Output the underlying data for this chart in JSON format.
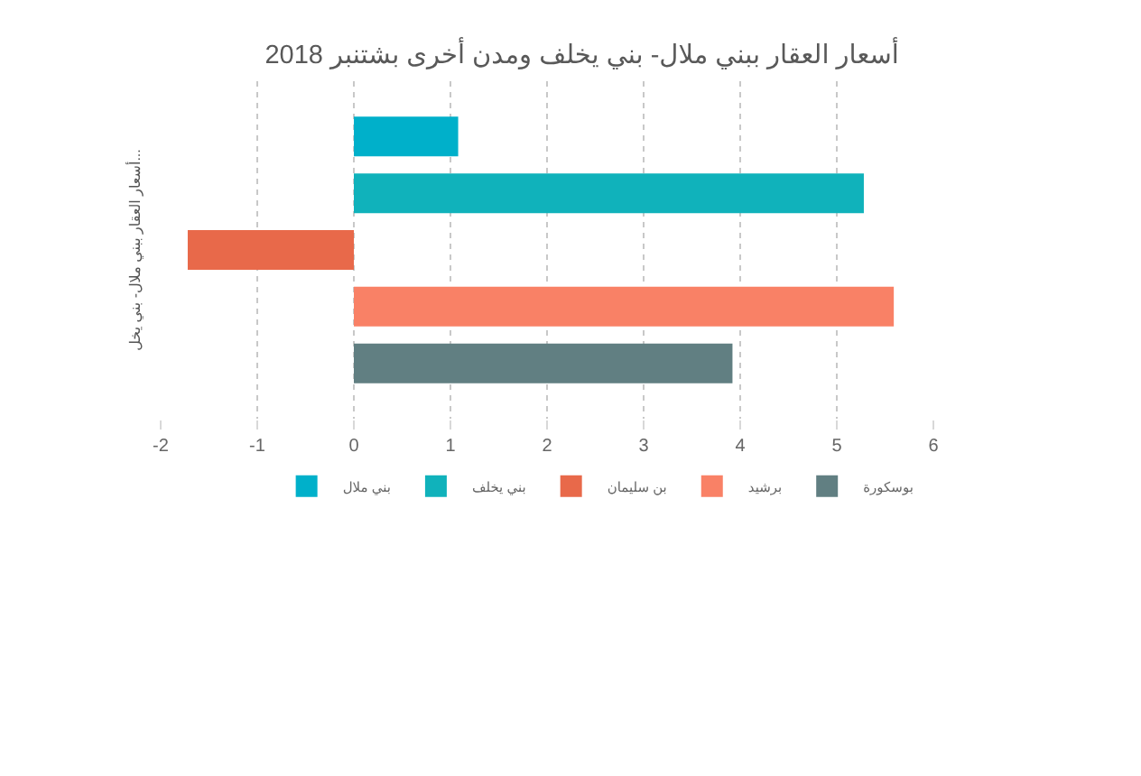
{
  "chart_data": {
    "type": "bar",
    "orientation": "horizontal",
    "title": "أسعار العقار ببني ملال- بني يخلف ومدن أخرى بشتنبر 2018",
    "ylabel": "أسعار العقار ببني ملال- بني يخل...",
    "categories": [
      null
    ],
    "series": [
      {
        "name": "بني ملال",
        "color": "#00b0ca",
        "values": [
          1.08
        ]
      },
      {
        "name": "بني يخلف",
        "color": "#10b2bb",
        "values": [
          5.28
        ]
      },
      {
        "name": "بن سليمان",
        "color": "#e8694a",
        "values": [
          -1.72
        ]
      },
      {
        "name": "برشيد",
        "color": "#f98166",
        "values": [
          5.59
        ]
      },
      {
        "name": "بوسكورة",
        "color": "#617f82",
        "values": [
          3.92
        ]
      }
    ],
    "xlim": [
      -2,
      6
    ],
    "xticks": [
      -2,
      -1,
      0,
      1,
      2,
      3,
      4,
      5,
      6
    ],
    "grid": "x",
    "legend": "bottom",
    "tick_labels": "x"
  }
}
